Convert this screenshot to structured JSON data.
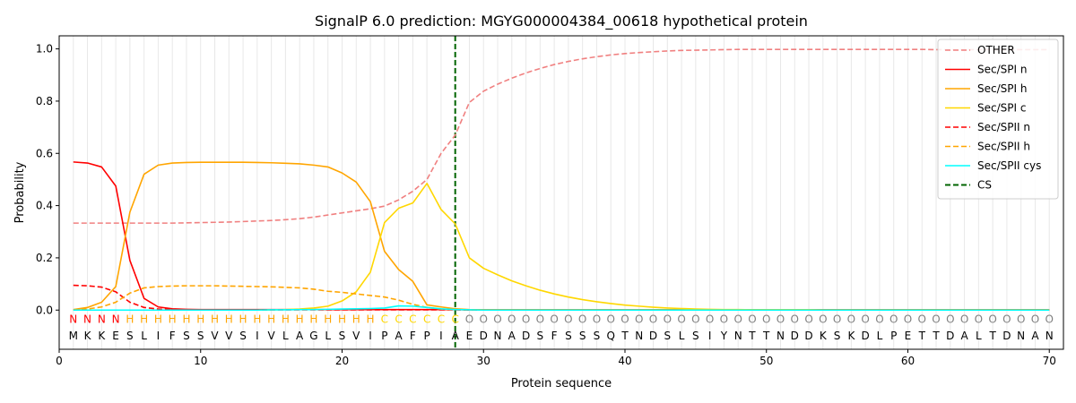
{
  "chart_data": {
    "type": "line",
    "title": "SignalP 6.0 prediction: MGYG000004384_00618 hypothetical protein",
    "xlabel": "Protein sequence",
    "ylabel": "Probability",
    "xlim": [
      0,
      71
    ],
    "ylim": [
      -0.15,
      1.05
    ],
    "xticks": [
      0,
      10,
      20,
      30,
      40,
      50,
      60,
      70
    ],
    "yticks": [
      0.0,
      0.2,
      0.4,
      0.6,
      0.8,
      1.0
    ],
    "ytick_labels": [
      "0.0",
      "0.2",
      "0.4",
      "0.6",
      "0.8",
      "1.0"
    ],
    "grid": "vertical lines at each residue",
    "legend_position": "top-right",
    "sequence": "MKKESLIFSSVVSIVLAGLSVIPAFPIAEDNADSFSSSQTNDSLSIYNTTNDDKSKDLPETTDALTDNAN",
    "labels": "NNNNHHHHHHHHHHHHHHHHHHCCCCCCOOOOOOOOOOOOOOOOOOOOOOOOOOOOOOOOOOOOOOOOOO",
    "label_colors": {
      "N": "#ff0000",
      "H": "#ffa500",
      "C": "#ffd700",
      "O": "#808080"
    },
    "cleavage_site": 28,
    "cs_label": "CS",
    "cs_color": "#006400",
    "series": [
      {
        "name": "OTHER",
        "color": "#f08080",
        "dash": "dashed",
        "values": [
          0.333,
          0.333,
          0.333,
          0.333,
          0.333,
          0.333,
          0.333,
          0.333,
          0.334,
          0.335,
          0.336,
          0.337,
          0.339,
          0.341,
          0.343,
          0.346,
          0.35,
          0.356,
          0.364,
          0.372,
          0.38,
          0.388,
          0.398,
          0.422,
          0.455,
          0.5,
          0.6,
          0.67,
          0.795,
          0.838,
          0.865,
          0.888,
          0.908,
          0.925,
          0.94,
          0.952,
          0.962,
          0.97,
          0.977,
          0.982,
          0.986,
          0.989,
          0.992,
          0.994,
          0.995,
          0.996,
          0.997,
          0.998,
          0.998,
          0.998,
          0.998,
          0.998,
          0.998,
          0.998,
          0.998,
          0.998,
          0.998,
          0.998,
          0.998,
          0.998,
          0.998,
          0.997,
          0.997,
          0.997,
          0.997,
          0.997,
          0.997,
          0.997,
          0.997,
          0.997
        ]
      },
      {
        "name": "Sec/SPI n",
        "color": "#ff0000",
        "dash": "solid",
        "values": [
          0.567,
          0.563,
          0.548,
          0.475,
          0.19,
          0.045,
          0.012,
          0.005,
          0.003,
          0.002,
          0.002,
          0.002,
          0.002,
          0.002,
          0.002,
          0.002,
          0.002,
          0.002,
          0.002,
          0.002,
          0.002,
          0.002,
          0.002,
          0.002,
          0.002,
          0.002,
          0.002,
          0.002,
          0.001,
          0.001,
          0.001,
          0.001,
          0.001,
          0.001,
          0.001,
          0.001,
          0.001,
          0.001,
          0.001,
          0.001,
          0.001,
          0.001,
          0.001,
          0.001,
          0.001,
          0.001,
          0.001,
          0.001,
          0.001,
          0.001,
          0.001,
          0.001,
          0.001,
          0.001,
          0.001,
          0.001,
          0.001,
          0.001,
          0.001,
          0.001,
          0.001,
          0.001,
          0.001,
          0.001,
          0.001,
          0.001,
          0.001,
          0.001,
          0.001,
          0.001
        ]
      },
      {
        "name": "Sec/SPI h",
        "color": "#ffa500",
        "dash": "solid",
        "values": [
          0.002,
          0.01,
          0.03,
          0.09,
          0.375,
          0.52,
          0.555,
          0.563,
          0.565,
          0.566,
          0.566,
          0.566,
          0.566,
          0.565,
          0.564,
          0.562,
          0.56,
          0.555,
          0.548,
          0.525,
          0.49,
          0.415,
          0.225,
          0.155,
          0.11,
          0.02,
          0.012,
          0.005,
          0.002,
          0.001,
          0.001,
          0.001,
          0.001,
          0.001,
          0.001,
          0.001,
          0.001,
          0.001,
          0.001,
          0.001,
          0.001,
          0.001,
          0.001,
          0.001,
          0.001,
          0.001,
          0.001,
          0.001,
          0.001,
          0.001,
          0.001,
          0.001,
          0.001,
          0.001,
          0.001,
          0.001,
          0.001,
          0.001,
          0.001,
          0.001,
          0.001,
          0.001,
          0.001,
          0.001,
          0.001,
          0.001,
          0.001,
          0.001,
          0.001,
          0.001
        ]
      },
      {
        "name": "Sec/SPI c",
        "color": "#ffd700",
        "dash": "solid",
        "values": [
          0.0,
          0.0,
          0.0,
          0.0,
          0.0,
          0.0,
          0.0,
          0.0,
          0.0,
          0.0,
          0.0,
          0.0,
          0.0,
          0.0,
          0.001,
          0.002,
          0.004,
          0.008,
          0.015,
          0.035,
          0.07,
          0.145,
          0.335,
          0.39,
          0.41,
          0.485,
          0.385,
          0.33,
          0.2,
          0.16,
          0.135,
          0.112,
          0.093,
          0.076,
          0.062,
          0.05,
          0.04,
          0.032,
          0.025,
          0.019,
          0.015,
          0.011,
          0.008,
          0.006,
          0.004,
          0.003,
          0.002,
          0.002,
          0.001,
          0.001,
          0.001,
          0.001,
          0.001,
          0.0,
          0.0,
          0.0,
          0.0,
          0.0,
          0.0,
          0.0,
          0.0,
          0.0,
          0.0,
          0.0,
          0.0,
          0.0,
          0.0,
          0.0,
          0.0,
          0.0
        ]
      },
      {
        "name": "Sec/SPII n",
        "color": "#ff0000",
        "dash": "dashed",
        "values": [
          0.095,
          0.093,
          0.088,
          0.07,
          0.03,
          0.01,
          0.004,
          0.002,
          0.001,
          0.001,
          0.001,
          0.001,
          0.001,
          0.001,
          0.001,
          0.001,
          0.001,
          0.001,
          0.001,
          0.001,
          0.001,
          0.001,
          0.001,
          0.001,
          0.001,
          0.001,
          0.001,
          0.001,
          0.0,
          0.0,
          0.0,
          0.0,
          0.0,
          0.0,
          0.0,
          0.0,
          0.0,
          0.0,
          0.0,
          0.0,
          0.0,
          0.0,
          0.0,
          0.0,
          0.0,
          0.0,
          0.0,
          0.0,
          0.0,
          0.0,
          0.0,
          0.0,
          0.0,
          0.0,
          0.0,
          0.0,
          0.0,
          0.0,
          0.0,
          0.0,
          0.0,
          0.0,
          0.0,
          0.0,
          0.0,
          0.0,
          0.0,
          0.0,
          0.0,
          0.0
        ]
      },
      {
        "name": "Sec/SPII h",
        "color": "#ffa500",
        "dash": "dashed",
        "values": [
          0.001,
          0.004,
          0.012,
          0.03,
          0.065,
          0.085,
          0.09,
          0.092,
          0.093,
          0.093,
          0.093,
          0.092,
          0.091,
          0.09,
          0.089,
          0.087,
          0.085,
          0.08,
          0.072,
          0.068,
          0.062,
          0.056,
          0.05,
          0.038,
          0.022,
          0.01,
          0.004,
          0.002,
          0.001,
          0.0,
          0.0,
          0.0,
          0.0,
          0.0,
          0.0,
          0.0,
          0.0,
          0.0,
          0.0,
          0.0,
          0.0,
          0.0,
          0.0,
          0.0,
          0.0,
          0.0,
          0.0,
          0.0,
          0.0,
          0.0,
          0.0,
          0.0,
          0.0,
          0.0,
          0.0,
          0.0,
          0.0,
          0.0,
          0.0,
          0.0,
          0.0,
          0.0,
          0.0,
          0.0,
          0.0,
          0.0,
          0.0,
          0.0,
          0.0,
          0.0
        ]
      },
      {
        "name": "Sec/SPII cys",
        "color": "#00ffff",
        "dash": "solid",
        "values": [
          0.0,
          0.0,
          0.0,
          0.0,
          0.0,
          0.0,
          0.0,
          0.0,
          0.0,
          0.0,
          0.0,
          0.0,
          0.0,
          0.0,
          0.001,
          0.001,
          0.002,
          0.002,
          0.003,
          0.004,
          0.005,
          0.006,
          0.008,
          0.016,
          0.015,
          0.01,
          0.005,
          0.002,
          0.001,
          0.0,
          0.0,
          0.0,
          0.0,
          0.0,
          0.0,
          0.0,
          0.0,
          0.0,
          0.0,
          0.0,
          0.0,
          0.0,
          0.0,
          0.0,
          0.0,
          0.0,
          0.0,
          0.0,
          0.0,
          0.0,
          0.0,
          0.0,
          0.0,
          0.0,
          0.0,
          0.0,
          0.0,
          0.0,
          0.0,
          0.0,
          0.0,
          0.0,
          0.0,
          0.0,
          0.0,
          0.0,
          0.0,
          0.0,
          0.0,
          0.0
        ]
      }
    ]
  }
}
